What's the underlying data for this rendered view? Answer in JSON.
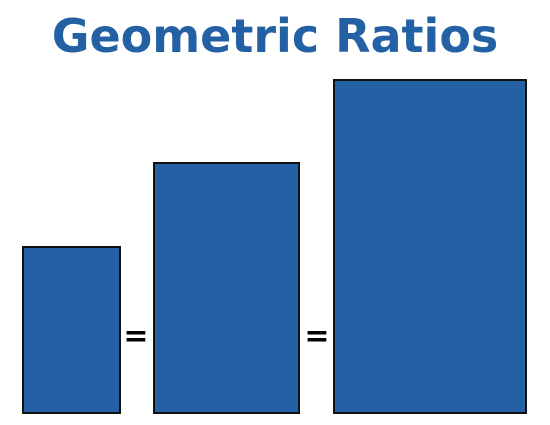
{
  "header": {
    "title": "Geometric Ratios"
  },
  "equals": [
    "=",
    "="
  ]
}
